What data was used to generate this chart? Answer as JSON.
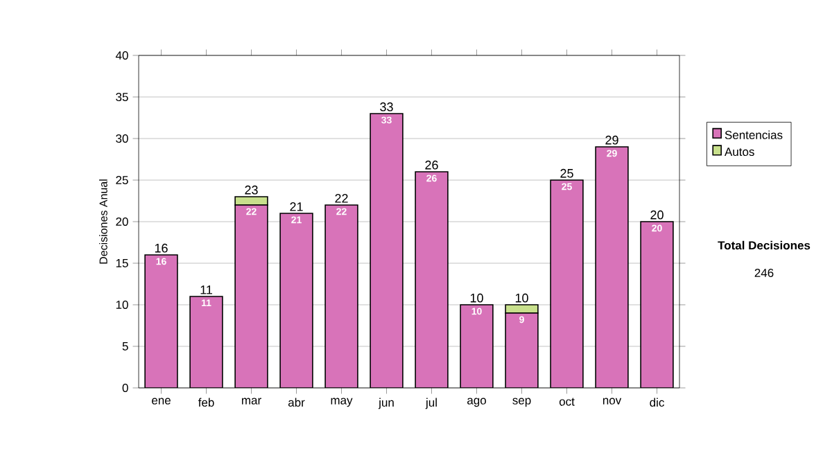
{
  "chart_data": {
    "type": "bar",
    "stacked": true,
    "ylabel": "Decisiones Anual",
    "categories": [
      "ene",
      "feb",
      "mar",
      "abr",
      "may",
      "jun",
      "jul",
      "ago",
      "sep",
      "oct",
      "nov",
      "dic"
    ],
    "series": [
      {
        "name": "Sentencias",
        "color": "#d873b9",
        "values": [
          16,
          11,
          22,
          21,
          22,
          33,
          26,
          10,
          9,
          25,
          29,
          20
        ],
        "value_labels": [
          "16",
          "11",
          "22",
          "21",
          "22",
          "33",
          "26",
          "10",
          "9",
          "25",
          "29",
          "20"
        ]
      },
      {
        "name": "Autos",
        "color": "#c8e08c",
        "values": [
          0,
          0,
          1,
          0,
          0,
          0,
          0,
          0,
          1,
          0,
          0,
          0
        ]
      }
    ],
    "totals": [
      "16",
      "11",
      "23",
      "21",
      "22",
      "33",
      "26",
      "10",
      "10",
      "25",
      "29",
      "20"
    ],
    "ylim": [
      0,
      40
    ],
    "yticks": [
      0,
      5,
      10,
      15,
      20,
      25,
      30,
      35,
      40
    ],
    "grid": "y",
    "legend": "right",
    "annotations": [
      "Total Decisiones",
      "246"
    ]
  }
}
